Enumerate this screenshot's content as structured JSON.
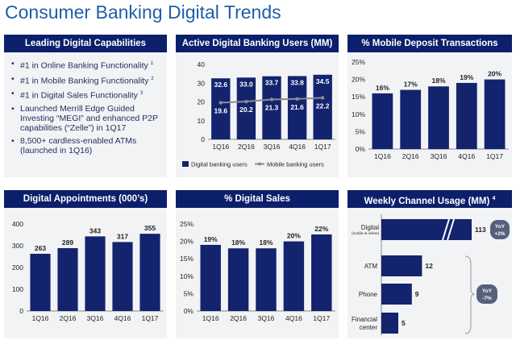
{
  "page": {
    "title": "Consumer Banking Digital Trends"
  },
  "capabilities": {
    "header": "Leading Digital Capabilities",
    "items": [
      {
        "text": "#1 in Online Banking Functionality",
        "note": "1"
      },
      {
        "text": "#1 in Mobile Banking Functionality",
        "note": "2"
      },
      {
        "text": "#1 in Digital Sales Functionality",
        "note": "3"
      },
      {
        "text": "Launched Merrill Edge Guided Investing “MEGI” and enhanced P2P capabilities (“Zelle”) in 1Q17",
        "note": ""
      },
      {
        "text": "8,500+ cardless-enabled ATMs (launched in 1Q16)",
        "note": ""
      }
    ]
  },
  "chart_data": [
    {
      "id": "active_users",
      "type": "bar",
      "title": "Active Digital Banking Users (MM)",
      "categories": [
        "1Q16",
        "2Q16",
        "3Q16",
        "4Q16",
        "1Q17"
      ],
      "series": [
        {
          "name": "Digital banking users",
          "kind": "bar",
          "values": [
            32.6,
            33.0,
            33.7,
            33.8,
            34.5
          ],
          "labels": [
            "32.6",
            "33.0",
            "33.7",
            "33.8",
            "34.5"
          ]
        },
        {
          "name": "Mobile banking users",
          "kind": "line",
          "values": [
            19.6,
            20.2,
            21.3,
            21.6,
            22.2
          ],
          "labels": [
            "19.6",
            "20.2",
            "21.3",
            "21.6",
            "22.2"
          ]
        }
      ],
      "ylim": [
        0,
        40
      ],
      "yticks": [
        "0",
        "10",
        "20",
        "30",
        "40"
      ],
      "legend": "bottom"
    },
    {
      "id": "mobile_deposit",
      "type": "bar",
      "title": "% Mobile Deposit Transactions",
      "categories": [
        "1Q16",
        "2Q16",
        "3Q16",
        "4Q16",
        "1Q17"
      ],
      "values": [
        16,
        17,
        18,
        19,
        20
      ],
      "labels": [
        "16%",
        "17%",
        "18%",
        "19%",
        "20%"
      ],
      "ylim": [
        0,
        25
      ],
      "yticks": [
        "0%",
        "5%",
        "10%",
        "15%",
        "20%",
        "25%"
      ]
    },
    {
      "id": "appointments",
      "type": "bar",
      "title": "Digital Appointments (000’s)",
      "categories": [
        "1Q16",
        "2Q16",
        "3Q16",
        "4Q16",
        "1Q17"
      ],
      "values": [
        263,
        289,
        343,
        317,
        355
      ],
      "labels": [
        "263",
        "289",
        "343",
        "317",
        "355"
      ],
      "ylim": [
        0,
        400
      ],
      "yticks": [
        "0",
        "100",
        "200",
        "300",
        "400"
      ]
    },
    {
      "id": "digital_sales",
      "type": "bar",
      "title": "% Digital Sales",
      "categories": [
        "1Q16",
        "2Q16",
        "3Q16",
        "4Q16",
        "1Q17"
      ],
      "values": [
        19,
        18,
        18,
        20,
        22
      ],
      "labels": [
        "19%",
        "18%",
        "18%",
        "20%",
        "22%"
      ],
      "ylim": [
        0,
        25
      ],
      "yticks": [
        "0%",
        "5%",
        "10%",
        "15%",
        "20%",
        "25%"
      ]
    },
    {
      "id": "weekly_channel",
      "type": "bar",
      "orientation": "horizontal",
      "title": "Weekly Channel Usage (MM)",
      "title_note": "4",
      "categories": [
        "Digital",
        "ATM",
        "Phone",
        "Financial center"
      ],
      "category_sub": [
        "(mobile & online)",
        "",
        "",
        ""
      ],
      "values": [
        113,
        12,
        9,
        5
      ],
      "labels": [
        "113",
        "12",
        "9",
        "5"
      ],
      "axis_break": true,
      "badges": [
        {
          "line1": "YoY",
          "line2": "+2%"
        },
        {
          "line1": "YoY",
          "line2": "-7%"
        }
      ]
    }
  ],
  "colors": {
    "header": "#0b1f6b",
    "bar": "#14236e",
    "line": "#8d8d8d",
    "badge": "#55607c",
    "title": "#1f5fa8",
    "panel_bg": "#f2f3f5"
  }
}
